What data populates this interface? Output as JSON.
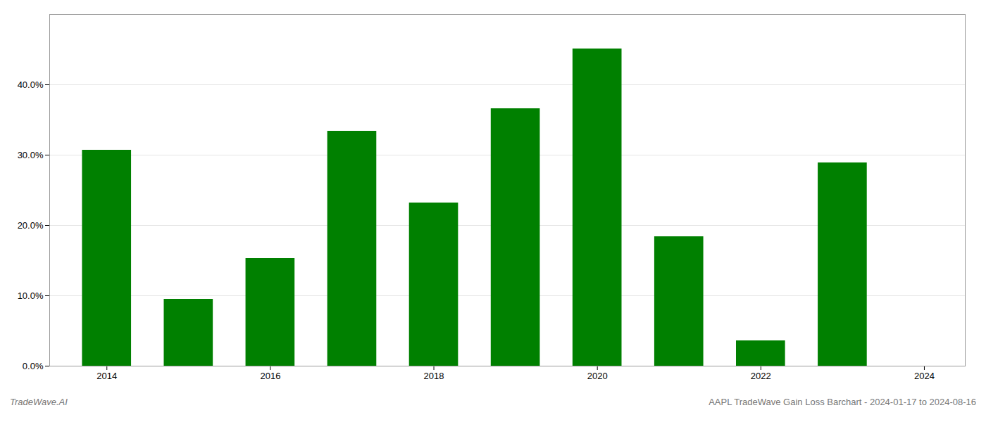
{
  "chart_data": {
    "type": "bar",
    "x": [
      2014,
      2015,
      2016,
      2017,
      2018,
      2019,
      2020,
      2021,
      2022,
      2023
    ],
    "values": [
      0.307,
      0.095,
      0.153,
      0.334,
      0.232,
      0.366,
      0.451,
      0.184,
      0.036,
      0.289
    ],
    "color": "#008000",
    "xlim": [
      2013.3,
      2024.5
    ],
    "xticks": [
      2014,
      2016,
      2018,
      2020,
      2022,
      2024
    ],
    "ylim": [
      0,
      0.5
    ],
    "yticks": [
      {
        "value": 0.0,
        "label": "0.0%"
      },
      {
        "value": 0.1,
        "label": "10.0%"
      },
      {
        "value": 0.2,
        "label": "20.0%"
      },
      {
        "value": 0.3,
        "label": "30.0%"
      },
      {
        "value": 0.4,
        "label": "40.0%"
      }
    ],
    "grid": true,
    "annotations": [
      "TradeWave.AI",
      "AAPL TradeWave Gain Loss Barchart - 2024-01-17 to 2024-08-16"
    ]
  }
}
